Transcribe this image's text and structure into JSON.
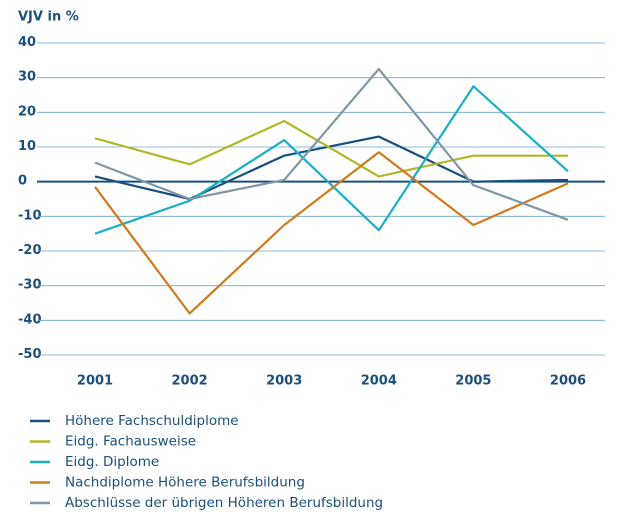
{
  "chart_data": {
    "type": "line",
    "y_label": "VJV in %",
    "categories": [
      "2001",
      "2002",
      "2003",
      "2004",
      "2005",
      "2006"
    ],
    "ylim": [
      -50,
      40
    ],
    "yticks": [
      40,
      30,
      20,
      10,
      0,
      -10,
      -20,
      -30,
      -40,
      -50
    ],
    "grid": true,
    "series": [
      {
        "name": "Höhere Fachschuldiplome",
        "color": "#17507f",
        "values": [
          1.5,
          -5,
          7.5,
          13,
          0,
          0.5
        ]
      },
      {
        "name": "Eidg. Fachausweise",
        "color": "#b3b629",
        "values": [
          12.5,
          5,
          17.5,
          1.5,
          7.5,
          7.5
        ]
      },
      {
        "name": "Eidg. Diplome",
        "color": "#19afc7",
        "values": [
          -15,
          -5.5,
          12,
          -14,
          27.5,
          3
        ]
      },
      {
        "name": "Nachdiplome Höhere Berufsbildung",
        "color": "#d07a1c",
        "values": [
          -1.5,
          -38,
          -12.5,
          8.5,
          -12.5,
          -0.5
        ]
      },
      {
        "name": "Abschlüsse der übrigen Höheren Berufsbildung",
        "color": "#7d97a8",
        "values": [
          5.5,
          -5,
          0.5,
          32.5,
          -1,
          -11
        ]
      }
    ]
  }
}
